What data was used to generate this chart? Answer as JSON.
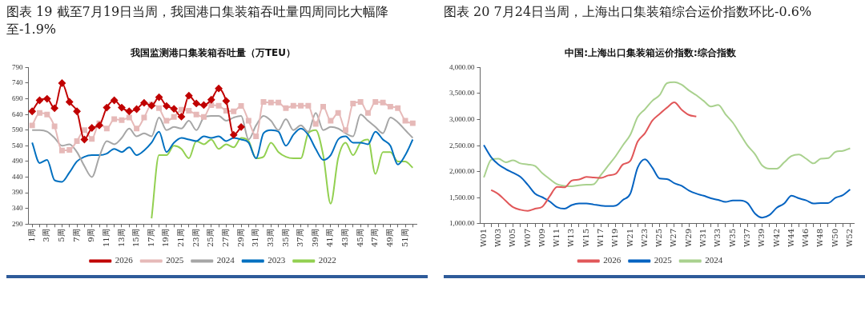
{
  "chart_data": [
    {
      "type": "line",
      "title": "图表 19 截至7月19日当周，我国港口集装箱吞吐量四周同比大幅降至-1.9%",
      "subtitle": "我国监测港口集装箱吞吐量（万TEU）",
      "categories": [
        "1周",
        null,
        "3周",
        null,
        "5周",
        null,
        "7周",
        null,
        "9周",
        null,
        "11周",
        null,
        "13周",
        null,
        "15周",
        null,
        "17周",
        null,
        "19周",
        null,
        "21周",
        null,
        "23周",
        null,
        "25周",
        null,
        "27周",
        null,
        "29周",
        null,
        "31周",
        null,
        "33周",
        null,
        "35周",
        null,
        "37周",
        null,
        "39周",
        null,
        "41周",
        null,
        "43周",
        null,
        "45周",
        null,
        "47周",
        null,
        "49周",
        null,
        "51周",
        null
      ],
      "ylim": [
        290,
        790
      ],
      "yticks": [
        290,
        340,
        390,
        440,
        490,
        540,
        590,
        640,
        690,
        740,
        790
      ],
      "grid": false,
      "legend": "bottom",
      "series": [
        {
          "name": "2022",
          "color": "#92d050",
          "marker": "none",
          "values": [
            null,
            null,
            null,
            null,
            null,
            null,
            null,
            null,
            null,
            null,
            null,
            null,
            null,
            null,
            null,
            null,
            308,
            510,
            510,
            540,
            530,
            500,
            555,
            545,
            560,
            530,
            545,
            535,
            565,
            555,
            500,
            505,
            550,
            520,
            505,
            500,
            500,
            580,
            590,
            510,
            355,
            500,
            550,
            510,
            550,
            560,
            450,
            520,
            520,
            490,
            490,
            470
          ]
        },
        {
          "name": "2023",
          "color": "#0070c0",
          "marker": "none",
          "values": [
            550,
            485,
            495,
            430,
            425,
            455,
            490,
            505,
            510,
            510,
            515,
            530,
            520,
            535,
            510,
            525,
            550,
            585,
            520,
            550,
            565,
            560,
            555,
            570,
            565,
            570,
            555,
            565,
            560,
            550,
            500,
            580,
            590,
            585,
            540,
            575,
            595,
            575,
            530,
            495,
            510,
            560,
            570,
            550,
            550,
            545,
            585,
            560,
            540,
            480,
            510,
            560
          ]
        },
        {
          "name": "2024",
          "color": "#a6a6a6",
          "marker": "none",
          "values": [
            590,
            590,
            585,
            565,
            540,
            545,
            520,
            475,
            440,
            505,
            555,
            545,
            565,
            595,
            570,
            580,
            570,
            630,
            590,
            600,
            595,
            620,
            590,
            630,
            635,
            635,
            620,
            630,
            635,
            560,
            605,
            635,
            620,
            590,
            625,
            590,
            605,
            585,
            645,
            590,
            600,
            595,
            580,
            570,
            640,
            620,
            600,
            580,
            630,
            615,
            590,
            565
          ]
        },
        {
          "name": "2025",
          "color": "#e6b9b8",
          "marker": "square",
          "values": [
            605,
            645,
            640,
            602,
            525,
            527,
            555,
            590,
            562,
            612,
            595,
            625,
            622,
            630,
            595,
            630,
            672,
            660,
            620,
            632,
            655,
            652,
            640,
            632,
            670,
            668,
            652,
            650,
            667,
            620,
            570,
            680,
            678,
            678,
            660,
            668,
            668,
            668,
            610,
            665,
            620,
            645,
            590,
            675,
            680,
            645,
            680,
            678,
            665,
            660,
            620,
            612
          ]
        },
        {
          "name": "2026",
          "color": "#c00000",
          "marker": "diamond",
          "values": [
            650,
            685,
            690,
            660,
            740,
            680,
            650,
            560,
            597,
            605,
            662,
            685,
            662,
            650,
            657,
            677,
            668,
            695,
            667,
            658,
            633,
            700,
            675,
            670,
            687,
            723,
            683,
            575,
            600,
            null,
            null,
            null,
            null,
            null,
            null,
            null,
            null,
            null,
            null,
            null,
            null,
            null,
            null,
            null,
            null,
            null,
            null,
            null,
            null,
            null,
            null,
            null
          ]
        }
      ]
    },
    {
      "type": "line",
      "title": "图表 20 7月24日当周，上海出口集装箱综合运价指数环比-0.6%",
      "subtitle": "中国:上海出口集装箱运价指数:综合指数",
      "categories": [
        "W01",
        null,
        "W03",
        null,
        "W05",
        null,
        "W07",
        null,
        "W09",
        null,
        "W11",
        null,
        "W13",
        null,
        "W15",
        null,
        "W17",
        null,
        "W19",
        null,
        "W21",
        null,
        "W23",
        null,
        "W25",
        null,
        "W27",
        null,
        "W29",
        null,
        "W31",
        null,
        "W33",
        null,
        "W35",
        null,
        "W37",
        null,
        "W39",
        null,
        "W42",
        null,
        "W44",
        null,
        "W46",
        null,
        "W48",
        null,
        "W50",
        null,
        "W52"
      ],
      "ylim": [
        1000,
        4000
      ],
      "yticks": [
        {
          "value": 1000,
          "label": "1,000.00"
        },
        {
          "value": 1500,
          "label": "1,500.00"
        },
        {
          "value": 2000,
          "label": "2,000.00"
        },
        {
          "value": 2500,
          "label": "2,500.00"
        },
        {
          "value": 3000,
          "label": "3,000.00"
        },
        {
          "value": 3500,
          "label": "3,500.00"
        },
        {
          "value": 4000,
          "label": "4,000.00"
        }
      ],
      "grid": false,
      "legend": "bottom",
      "series": [
        {
          "name": "2024",
          "color": "#a9d18e",
          "marker": "none",
          "values": [
            1890,
            2230,
            2250,
            2180,
            2220,
            2160,
            2140,
            2110,
            1970,
            1860,
            1760,
            1730,
            1720,
            1740,
            1750,
            1760,
            1940,
            2120,
            2300,
            2510,
            2710,
            3050,
            3200,
            3360,
            3470,
            3700,
            3720,
            3670,
            3560,
            3470,
            3360,
            3250,
            3280,
            3100,
            2940,
            2720,
            2500,
            2340,
            2120,
            2060,
            2060,
            2180,
            2300,
            2330,
            2250,
            2160,
            2250,
            2260,
            2380,
            2400,
            2450
          ]
        },
        {
          "name": "2025",
          "color": "#0563c1",
          "marker": "none",
          "values": [
            2510,
            2280,
            2140,
            2050,
            1980,
            1900,
            1750,
            1580,
            1510,
            1430,
            1320,
            1290,
            1360,
            1390,
            1390,
            1370,
            1350,
            1340,
            1350,
            1460,
            1580,
            2080,
            2240,
            2080,
            1870,
            1860,
            1780,
            1730,
            1640,
            1580,
            1540,
            1490,
            1460,
            1420,
            1450,
            1450,
            1400,
            1200,
            1120,
            1170,
            1310,
            1390,
            1540,
            1490,
            1450,
            1390,
            1400,
            1400,
            1500,
            1550,
            1660
          ]
        },
        {
          "name": "2026",
          "color": "#e15759",
          "marker": "none",
          "values": [
            null,
            1650,
            1570,
            1440,
            1320,
            1270,
            1250,
            1290,
            1330,
            1530,
            1710,
            1700,
            1830,
            1850,
            1900,
            1890,
            1880,
            1930,
            1960,
            2140,
            2210,
            2580,
            2740,
            2980,
            3110,
            3230,
            3330,
            3190,
            3090,
            3060,
            null,
            null,
            null,
            null,
            null,
            null,
            null,
            null,
            null,
            null,
            null,
            null,
            null,
            null,
            null,
            null,
            null,
            null,
            null,
            null,
            null
          ]
        }
      ]
    }
  ]
}
